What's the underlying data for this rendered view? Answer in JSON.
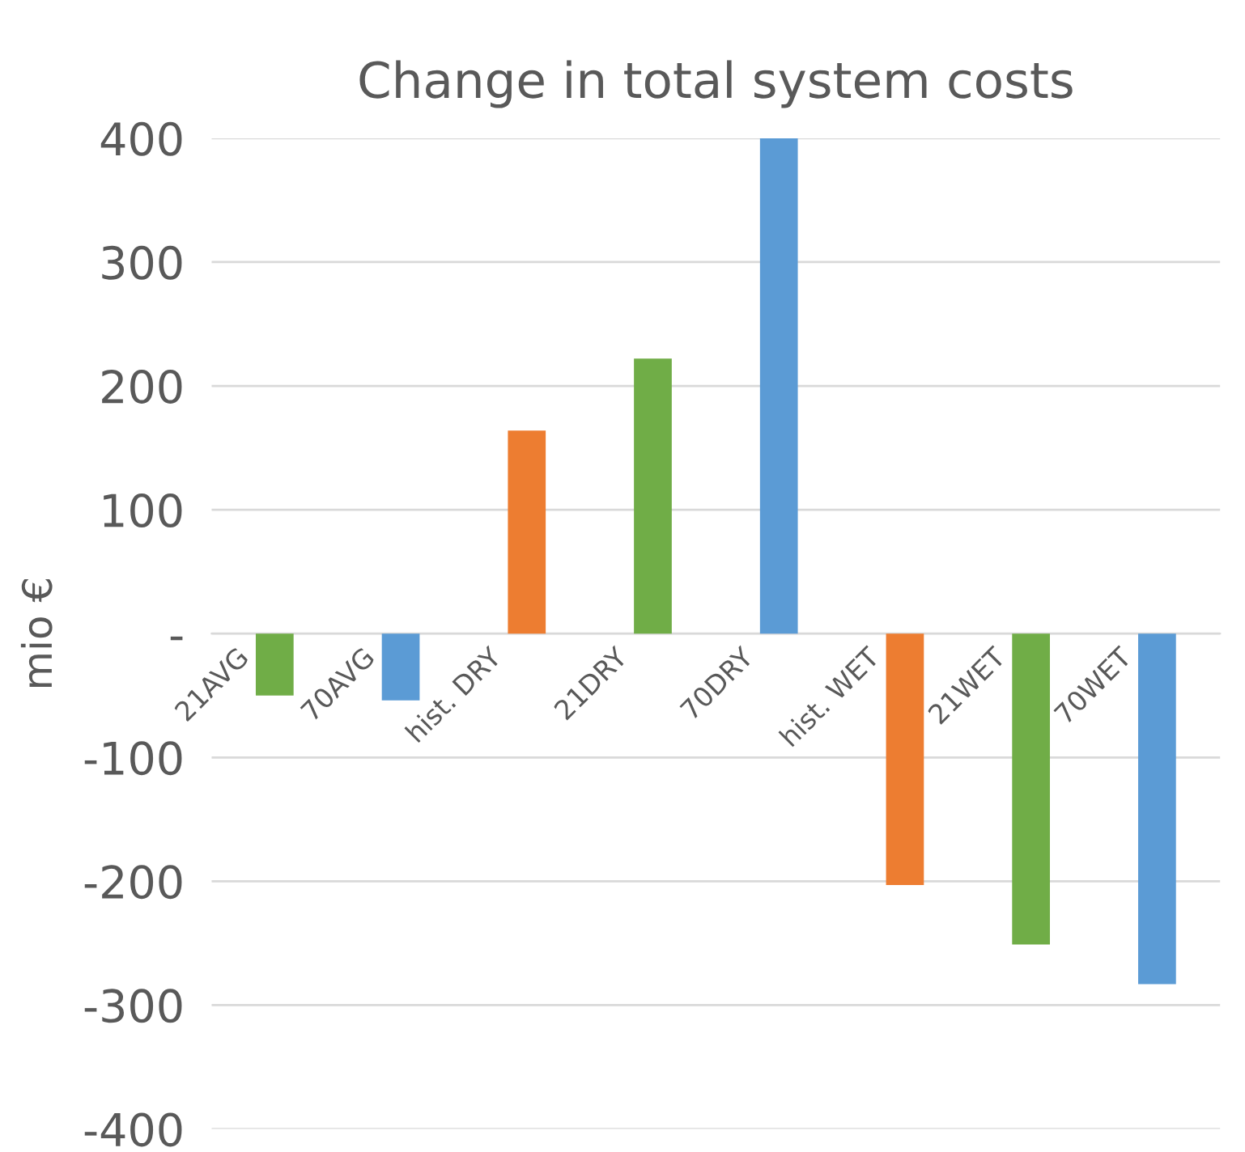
{
  "chart_data": {
    "type": "bar",
    "title": "Change in total system costs",
    "ylabel": "mio €",
    "categories": [
      "21AVG",
      "70AVG",
      "hist. DRY",
      "21DRY",
      "70DRY",
      "hist. WET",
      "21WET",
      "70WET"
    ],
    "values": [
      -50,
      -54,
      164,
      222,
      400,
      -203,
      -251,
      -283
    ],
    "colors": [
      "#70ad47",
      "#5b9bd5",
      "#ed7d31",
      "#70ad47",
      "#5b9bd5",
      "#ed7d31",
      "#70ad47",
      "#5b9bd5"
    ],
    "ylim": [
      -400,
      400
    ],
    "yticks": [
      -400,
      -300,
      -200,
      -100,
      {
        "value": 0,
        "label": "-"
      },
      100,
      200,
      300,
      400
    ],
    "grid": "y",
    "legend": false
  }
}
